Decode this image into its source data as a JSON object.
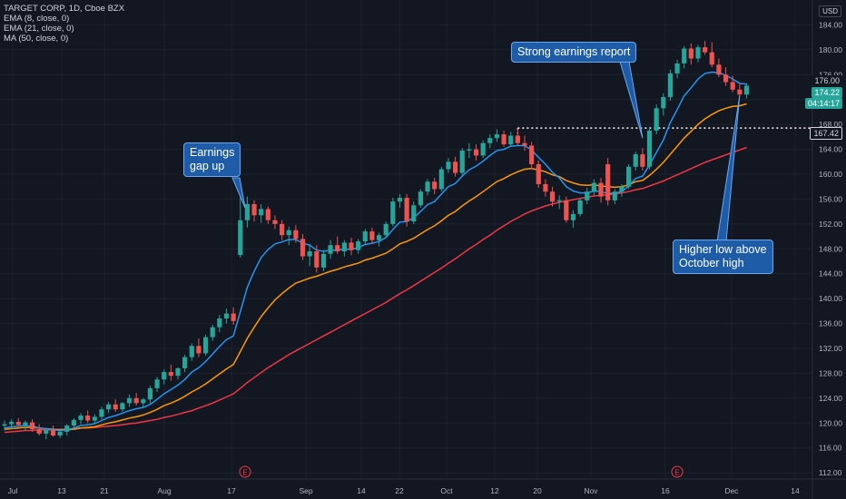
{
  "legend": {
    "title": "TARGET CORP, 1D, Cboe BZX",
    "ema8": "EMA (8, close, 0)",
    "ema21": "EMA (21, close, 0)",
    "ma50": "MA (50, close, 0)"
  },
  "axis": {
    "currency": "USD",
    "menu": "···"
  },
  "callouts": {
    "earnings_gap": "Earnings\ngap up",
    "strong_earnings": "Strong earnings report",
    "higher_low": "Higher low above\nOctober high"
  },
  "price_labels": {
    "last": "174.22",
    "countdown": "04:14:17",
    "prev_high": "176.00",
    "october_high": "167.42"
  },
  "event_marker": "E",
  "colors": {
    "background": "#131722",
    "up": "#26a69a",
    "down": "#ef5350",
    "ema8": "#2196f3",
    "ema21": "#ff9800",
    "ma50": "#f23645",
    "callout": "#1e5ca8"
  },
  "chart_data": {
    "type": "candlestick",
    "y_range": [
      111,
      188
    ],
    "y_ticks": [
      112,
      116,
      120,
      124,
      128,
      132,
      136,
      140,
      144,
      148,
      152,
      156,
      160,
      164,
      168,
      172,
      176,
      180,
      184
    ],
    "x_labels": [
      "Jul",
      "13",
      "21",
      "Aug",
      "17",
      "Sep",
      "14",
      "22",
      "Oct",
      "12",
      "20",
      "Nov",
      "16",
      "Dec",
      "14"
    ],
    "october_high": 167.42,
    "last_price": 174.22,
    "candles": [
      [
        119.6,
        120.4,
        118.8,
        119.8
      ],
      [
        119.8,
        120.6,
        119.0,
        120.2
      ],
      [
        120.2,
        120.8,
        119.4,
        119.7
      ],
      [
        119.7,
        120.4,
        118.8,
        120.1
      ],
      [
        120.1,
        120.6,
        118.6,
        119.0
      ],
      [
        119.0,
        119.8,
        118.0,
        118.3
      ],
      [
        118.3,
        119.2,
        117.4,
        118.8
      ],
      [
        118.8,
        119.6,
        117.8,
        118.0
      ],
      [
        118.0,
        119.0,
        117.6,
        118.6
      ],
      [
        118.6,
        119.8,
        118.0,
        119.6
      ],
      [
        119.6,
        120.8,
        119.2,
        120.5
      ],
      [
        120.5,
        121.6,
        119.8,
        121.2
      ],
      [
        121.2,
        122.0,
        120.0,
        120.4
      ],
      [
        120.4,
        121.4,
        119.8,
        121.0
      ],
      [
        121.0,
        122.6,
        120.6,
        122.2
      ],
      [
        122.2,
        123.4,
        121.6,
        123.0
      ],
      [
        123.0,
        123.8,
        121.8,
        122.2
      ],
      [
        122.2,
        123.4,
        121.8,
        123.2
      ],
      [
        123.2,
        124.6,
        122.6,
        124.0
      ],
      [
        124.0,
        124.8,
        122.8,
        123.2
      ],
      [
        123.2,
        124.0,
        122.4,
        123.8
      ],
      [
        123.8,
        126.0,
        123.2,
        125.6
      ],
      [
        125.6,
        127.4,
        125.0,
        127.0
      ],
      [
        127.0,
        128.6,
        126.2,
        128.2
      ],
      [
        128.2,
        129.4,
        126.8,
        127.6
      ],
      [
        127.6,
        129.0,
        127.0,
        128.8
      ],
      [
        128.8,
        131.0,
        128.2,
        130.6
      ],
      [
        130.6,
        132.8,
        130.0,
        132.4
      ],
      [
        132.4,
        133.6,
        130.6,
        131.2
      ],
      [
        131.2,
        134.2,
        130.8,
        133.8
      ],
      [
        133.8,
        135.8,
        133.2,
        135.4
      ],
      [
        135.4,
        137.4,
        134.6,
        136.8
      ],
      [
        136.8,
        138.4,
        136.0,
        137.6
      ],
      [
        137.6,
        138.6,
        135.8,
        136.4
      ],
      [
        147.0,
        156.4,
        146.6,
        152.6
      ],
      [
        152.6,
        156.4,
        151.4,
        155.2
      ],
      [
        155.2,
        155.8,
        152.4,
        153.4
      ],
      [
        153.4,
        155.2,
        152.2,
        154.4
      ],
      [
        154.4,
        154.8,
        152.0,
        152.6
      ],
      [
        152.6,
        153.4,
        151.2,
        152.0
      ],
      [
        152.0,
        152.6,
        149.4,
        150.2
      ],
      [
        150.2,
        151.6,
        148.6,
        151.0
      ],
      [
        151.0,
        151.8,
        149.0,
        149.6
      ],
      [
        149.6,
        150.4,
        146.2,
        146.8
      ],
      [
        146.8,
        148.8,
        145.2,
        147.6
      ],
      [
        147.6,
        148.6,
        144.2,
        145.0
      ],
      [
        145.0,
        147.8,
        144.4,
        147.2
      ],
      [
        147.2,
        149.4,
        146.4,
        148.6
      ],
      [
        148.6,
        150.0,
        147.2,
        147.6
      ],
      [
        147.6,
        149.4,
        146.8,
        149.0
      ],
      [
        149.0,
        149.8,
        147.0,
        147.8
      ],
      [
        147.8,
        149.6,
        147.2,
        149.2
      ],
      [
        149.2,
        151.2,
        148.6,
        150.8
      ],
      [
        150.8,
        151.4,
        148.8,
        149.4
      ],
      [
        149.4,
        150.6,
        148.4,
        150.2
      ],
      [
        150.2,
        152.4,
        149.8,
        152.0
      ],
      [
        152.0,
        156.2,
        151.6,
        155.6
      ],
      [
        155.6,
        156.8,
        154.6,
        156.2
      ],
      [
        156.2,
        156.8,
        151.6,
        152.4
      ],
      [
        152.4,
        155.6,
        152.0,
        155.0
      ],
      [
        155.0,
        157.6,
        154.6,
        157.2
      ],
      [
        157.2,
        159.2,
        156.6,
        158.8
      ],
      [
        158.8,
        159.4,
        156.8,
        157.6
      ],
      [
        157.6,
        161.2,
        157.2,
        160.8
      ],
      [
        160.8,
        162.6,
        160.2,
        162.0
      ],
      [
        162.0,
        162.8,
        159.6,
        160.2
      ],
      [
        160.2,
        164.2,
        159.8,
        163.8
      ],
      [
        163.8,
        165.0,
        162.6,
        164.0
      ],
      [
        164.0,
        164.8,
        162.2,
        163.0
      ],
      [
        163.0,
        165.4,
        162.6,
        165.0
      ],
      [
        165.0,
        166.4,
        164.2,
        165.8
      ],
      [
        165.8,
        167.2,
        165.2,
        166.4
      ],
      [
        166.4,
        167.0,
        164.4,
        164.8
      ],
      [
        164.8,
        166.8,
        164.4,
        166.2
      ],
      [
        166.2,
        167.4,
        164.6,
        165.0
      ],
      [
        165.0,
        166.2,
        163.8,
        164.6
      ],
      [
        164.6,
        165.2,
        160.8,
        161.6
      ],
      [
        161.6,
        162.2,
        157.8,
        158.4
      ],
      [
        158.4,
        159.2,
        156.4,
        157.2
      ],
      [
        157.2,
        158.0,
        154.8,
        155.6
      ],
      [
        155.6,
        156.6,
        154.4,
        155.8
      ],
      [
        155.8,
        156.4,
        152.2,
        152.6
      ],
      [
        152.6,
        154.2,
        151.4,
        153.6
      ],
      [
        153.6,
        156.2,
        153.2,
        155.8
      ],
      [
        155.8,
        157.8,
        155.2,
        157.2
      ],
      [
        157.2,
        159.2,
        156.6,
        158.6
      ],
      [
        158.6,
        159.4,
        155.4,
        156.4
      ],
      [
        161.6,
        162.6,
        155.0,
        155.8
      ],
      [
        155.8,
        157.6,
        155.2,
        157.2
      ],
      [
        157.2,
        158.4,
        156.4,
        158.0
      ],
      [
        158.0,
        161.6,
        157.6,
        161.2
      ],
      [
        161.2,
        163.6,
        160.6,
        163.2
      ],
      [
        163.2,
        164.2,
        160.6,
        161.2
      ],
      [
        161.2,
        167.6,
        160.8,
        167.0
      ],
      [
        167.0,
        171.2,
        166.4,
        170.6
      ],
      [
        170.6,
        173.0,
        169.4,
        172.4
      ],
      [
        172.4,
        176.8,
        171.8,
        176.2
      ],
      [
        176.2,
        178.4,
        175.4,
        177.8
      ],
      [
        177.8,
        180.6,
        177.0,
        180.2
      ],
      [
        180.2,
        181.0,
        177.6,
        178.6
      ],
      [
        178.6,
        180.8,
        178.0,
        180.4
      ],
      [
        180.4,
        181.4,
        179.2,
        179.6
      ],
      [
        179.6,
        181.2,
        177.2,
        177.6
      ],
      [
        177.6,
        178.6,
        175.6,
        176.0
      ],
      [
        176.0,
        177.2,
        174.2,
        174.8
      ],
      [
        174.8,
        175.8,
        173.2,
        173.6
      ],
      [
        173.6,
        174.6,
        172.4,
        172.8
      ],
      [
        172.8,
        174.6,
        172.2,
        174.22
      ]
    ],
    "ema8": [
      119.2,
      119.4,
      119.5,
      119.6,
      119.5,
      119.2,
      119.1,
      118.9,
      118.8,
      118.9,
      119.2,
      119.6,
      119.7,
      119.9,
      120.4,
      120.9,
      121.2,
      121.6,
      122.0,
      122.3,
      122.5,
      123.0,
      123.8,
      124.7,
      125.4,
      126.1,
      127.0,
      128.2,
      128.9,
      129.9,
      131.1,
      132.3,
      133.4,
      134.0,
      137.9,
      141.8,
      144.4,
      146.6,
      147.9,
      148.8,
      149.1,
      149.5,
      149.5,
      148.9,
      148.6,
      147.8,
      147.6,
      147.8,
      147.8,
      148.0,
      147.9,
      148.2,
      148.7,
      148.9,
      149.2,
      149.8,
      151.1,
      152.3,
      152.4,
      153.0,
      154.0,
      155.1,
      155.6,
      156.8,
      158.0,
      158.5,
      159.7,
      160.7,
      161.3,
      162.1,
      163.0,
      163.8,
      164.0,
      164.5,
      164.6,
      164.6,
      163.9,
      162.7,
      161.6,
      160.3,
      159.4,
      158.0,
      157.3,
      157.0,
      157.0,
      157.3,
      157.2,
      156.9,
      157.0,
      157.2,
      158.1,
      159.3,
      159.7,
      161.5,
      163.5,
      165.5,
      168.3,
      170.4,
      172.6,
      173.9,
      175.3,
      176.2,
      176.4,
      176.3,
      175.9,
      175.3,
      174.6,
      174.5
    ],
    "ema21": [
      119.0,
      119.1,
      119.2,
      119.3,
      119.3,
      119.2,
      119.1,
      119.0,
      118.9,
      118.9,
      119.0,
      119.2,
      119.3,
      119.4,
      119.7,
      120.0,
      120.2,
      120.5,
      120.8,
      121.0,
      121.3,
      121.7,
      122.2,
      122.8,
      123.2,
      123.7,
      124.3,
      125.0,
      125.6,
      126.3,
      127.1,
      127.9,
      128.7,
      129.4,
      131.5,
      133.6,
      135.4,
      137.1,
      138.5,
      139.8,
      140.8,
      141.7,
      142.5,
      142.9,
      143.3,
      143.6,
      144.0,
      144.4,
      144.7,
      145.1,
      145.4,
      145.7,
      146.2,
      146.5,
      146.9,
      147.3,
      148.0,
      148.8,
      149.2,
      149.7,
      150.4,
      151.1,
      151.7,
      152.5,
      153.4,
      154.0,
      154.9,
      155.7,
      156.4,
      157.2,
      158.0,
      158.8,
      159.3,
      159.9,
      160.4,
      160.8,
      160.9,
      160.7,
      160.4,
      159.9,
      159.6,
      159.0,
      158.6,
      158.3,
      158.2,
      158.3,
      158.1,
      158.0,
      157.9,
      158.0,
      158.3,
      158.8,
      159.0,
      159.8,
      160.8,
      161.9,
      163.2,
      164.5,
      165.8,
      166.9,
      168.0,
      168.9,
      169.6,
      170.2,
      170.6,
      170.9,
      171.0,
      171.3
    ],
    "ma50": [
      118.5,
      118.6,
      118.7,
      118.8,
      118.8,
      118.9,
      118.9,
      118.9,
      119.0,
      119.0,
      119.1,
      119.2,
      119.2,
      119.3,
      119.4,
      119.5,
      119.6,
      119.7,
      119.9,
      120.0,
      120.2,
      120.4,
      120.6,
      120.9,
      121.1,
      121.4,
      121.7,
      122.0,
      122.4,
      122.8,
      123.2,
      123.7,
      124.2,
      124.7,
      125.6,
      126.5,
      127.3,
      128.1,
      128.9,
      129.6,
      130.3,
      131.0,
      131.6,
      132.2,
      132.8,
      133.4,
      134.0,
      134.6,
      135.2,
      135.8,
      136.4,
      137.0,
      137.6,
      138.2,
      138.8,
      139.4,
      140.1,
      140.8,
      141.4,
      142.1,
      142.8,
      143.5,
      144.2,
      144.9,
      145.7,
      146.4,
      147.2,
      148.0,
      148.7,
      149.5,
      150.2,
      151.0,
      151.7,
      152.4,
      153.0,
      153.6,
      154.1,
      154.5,
      154.9,
      155.2,
      155.5,
      155.7,
      155.9,
      156.1,
      156.3,
      156.5,
      156.6,
      156.7,
      156.8,
      157.0,
      157.2,
      157.5,
      157.7,
      158.1,
      158.5,
      158.9,
      159.4,
      159.9,
      160.4,
      160.9,
      161.4,
      161.9,
      162.3,
      162.7,
      163.1,
      163.5,
      163.9,
      164.3
    ]
  }
}
